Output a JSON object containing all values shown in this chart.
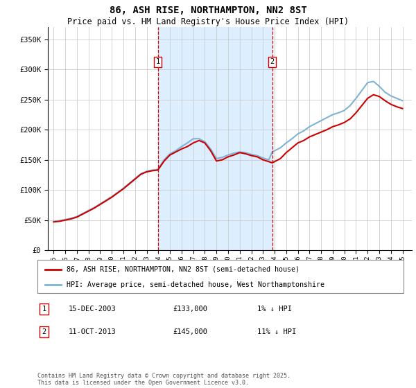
{
  "title": "86, ASH RISE, NORTHAMPTON, NN2 8ST",
  "subtitle": "Price paid vs. HM Land Registry's House Price Index (HPI)",
  "legend_line1": "86, ASH RISE, NORTHAMPTON, NN2 8ST (semi-detached house)",
  "legend_line2": "HPI: Average price, semi-detached house, West Northamptonshire",
  "footnote": "Contains HM Land Registry data © Crown copyright and database right 2025.\nThis data is licensed under the Open Government Licence v3.0.",
  "annotation1_label": "1",
  "annotation1_date": "15-DEC-2003",
  "annotation1_price": "£133,000",
  "annotation1_hpi": "1% ↓ HPI",
  "annotation2_label": "2",
  "annotation2_date": "11-OCT-2013",
  "annotation2_price": "£145,000",
  "annotation2_hpi": "11% ↓ HPI",
  "marker1_x": 2003.96,
  "marker1_y": 133000,
  "marker2_x": 2013.79,
  "marker2_y": 145000,
  "ylim": [
    0,
    370000
  ],
  "xlim_start": 1994.5,
  "xlim_end": 2025.8,
  "yticks": [
    0,
    50000,
    100000,
    150000,
    200000,
    250000,
    300000,
    350000
  ],
  "xticks": [
    1995,
    1996,
    1997,
    1998,
    1999,
    2000,
    2001,
    2002,
    2003,
    2004,
    2005,
    2006,
    2007,
    2008,
    2009,
    2010,
    2011,
    2012,
    2013,
    2014,
    2015,
    2016,
    2017,
    2018,
    2019,
    2020,
    2021,
    2022,
    2023,
    2024,
    2025
  ],
  "red_color": "#cc0000",
  "blue_color": "#7fb3d3",
  "background_color": "#ddeeff",
  "shaded_region_start": 2003.96,
  "shaded_region_end": 2013.79,
  "red_data_x": [
    1995.0,
    1995.5,
    1996.0,
    1996.5,
    1997.0,
    1997.5,
    1998.0,
    1998.5,
    1999.0,
    1999.5,
    2000.0,
    2000.5,
    2001.0,
    2001.5,
    2002.0,
    2002.5,
    2003.0,
    2003.5,
    2003.96,
    2004.5,
    2005.0,
    2005.5,
    2006.0,
    2006.5,
    2007.0,
    2007.5,
    2008.0,
    2008.5,
    2009.0,
    2009.5,
    2010.0,
    2010.5,
    2011.0,
    2011.5,
    2012.0,
    2012.5,
    2013.0,
    2013.5,
    2013.79,
    2014.5,
    2015.0,
    2015.5,
    2016.0,
    2016.5,
    2017.0,
    2017.5,
    2018.0,
    2018.5,
    2019.0,
    2019.5,
    2020.0,
    2020.5,
    2021.0,
    2021.5,
    2022.0,
    2022.5,
    2023.0,
    2023.5,
    2024.0,
    2024.5,
    2025.0
  ],
  "red_data_y": [
    47000,
    48000,
    50000,
    52000,
    55000,
    60000,
    65000,
    70000,
    76000,
    82000,
    88000,
    95000,
    102000,
    110000,
    118000,
    126000,
    130000,
    132000,
    133000,
    148000,
    158000,
    163000,
    168000,
    172000,
    178000,
    182000,
    178000,
    165000,
    148000,
    150000,
    155000,
    158000,
    162000,
    160000,
    157000,
    155000,
    150000,
    147000,
    145000,
    152000,
    162000,
    170000,
    178000,
    182000,
    188000,
    192000,
    196000,
    200000,
    205000,
    208000,
    212000,
    218000,
    228000,
    240000,
    252000,
    258000,
    255000,
    248000,
    242000,
    238000,
    235000
  ],
  "blue_data_x": [
    1995.0,
    1995.5,
    1996.0,
    1996.5,
    1997.0,
    1997.5,
    1998.0,
    1998.5,
    1999.0,
    1999.5,
    2000.0,
    2000.5,
    2001.0,
    2001.5,
    2002.0,
    2002.5,
    2003.0,
    2003.5,
    2003.96,
    2004.5,
    2005.0,
    2005.5,
    2006.0,
    2006.5,
    2007.0,
    2007.5,
    2008.0,
    2008.5,
    2009.0,
    2009.5,
    2010.0,
    2010.5,
    2011.0,
    2011.5,
    2012.0,
    2012.5,
    2013.0,
    2013.5,
    2013.79,
    2014.5,
    2015.0,
    2015.5,
    2016.0,
    2016.5,
    2017.0,
    2017.5,
    2018.0,
    2018.5,
    2019.0,
    2019.5,
    2020.0,
    2020.5,
    2021.0,
    2021.5,
    2022.0,
    2022.5,
    2023.0,
    2023.5,
    2024.0,
    2024.5,
    2025.0
  ],
  "blue_data_y": [
    48000,
    49000,
    51000,
    53000,
    56000,
    61000,
    66000,
    71000,
    77000,
    83000,
    89000,
    96000,
    103000,
    111000,
    119000,
    127000,
    131000,
    133000,
    134000,
    150000,
    160000,
    165000,
    172000,
    178000,
    185000,
    185000,
    180000,
    168000,
    152000,
    154000,
    158000,
    161000,
    163000,
    162000,
    159000,
    157000,
    153000,
    150000,
    163000,
    170000,
    178000,
    185000,
    193000,
    198000,
    205000,
    210000,
    215000,
    220000,
    225000,
    228000,
    232000,
    240000,
    252000,
    265000,
    278000,
    280000,
    272000,
    262000,
    256000,
    252000,
    248000
  ]
}
